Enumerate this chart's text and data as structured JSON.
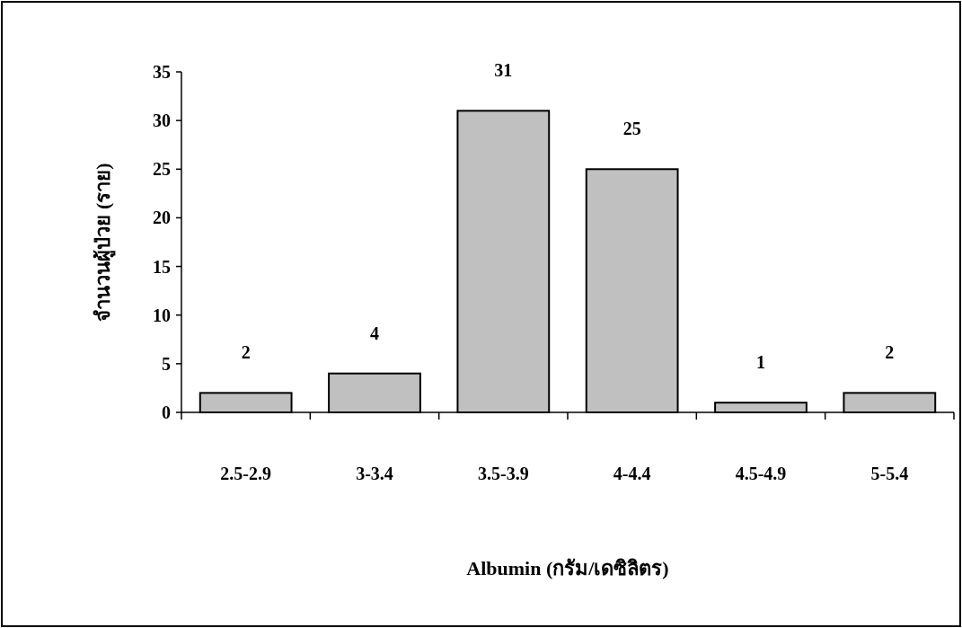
{
  "chart_data": {
    "type": "bar",
    "categories": [
      "2.5-2.9",
      "3-3.4",
      "3.5-3.9",
      "4-4.4",
      "4.5-4.9",
      "5-5.4"
    ],
    "values": [
      2,
      4,
      31,
      25,
      1,
      2
    ],
    "color": "#c0c0c0",
    "ylim": [
      0,
      35
    ],
    "yticks": [
      0,
      5,
      10,
      15,
      20,
      25,
      30,
      35
    ],
    "xlabel": "Albumin (กรัม/เดซิลิตร)",
    "ylabel": "จำนวนผู้ป่วย (ราย)",
    "data_labels": true,
    "grid": false
  }
}
